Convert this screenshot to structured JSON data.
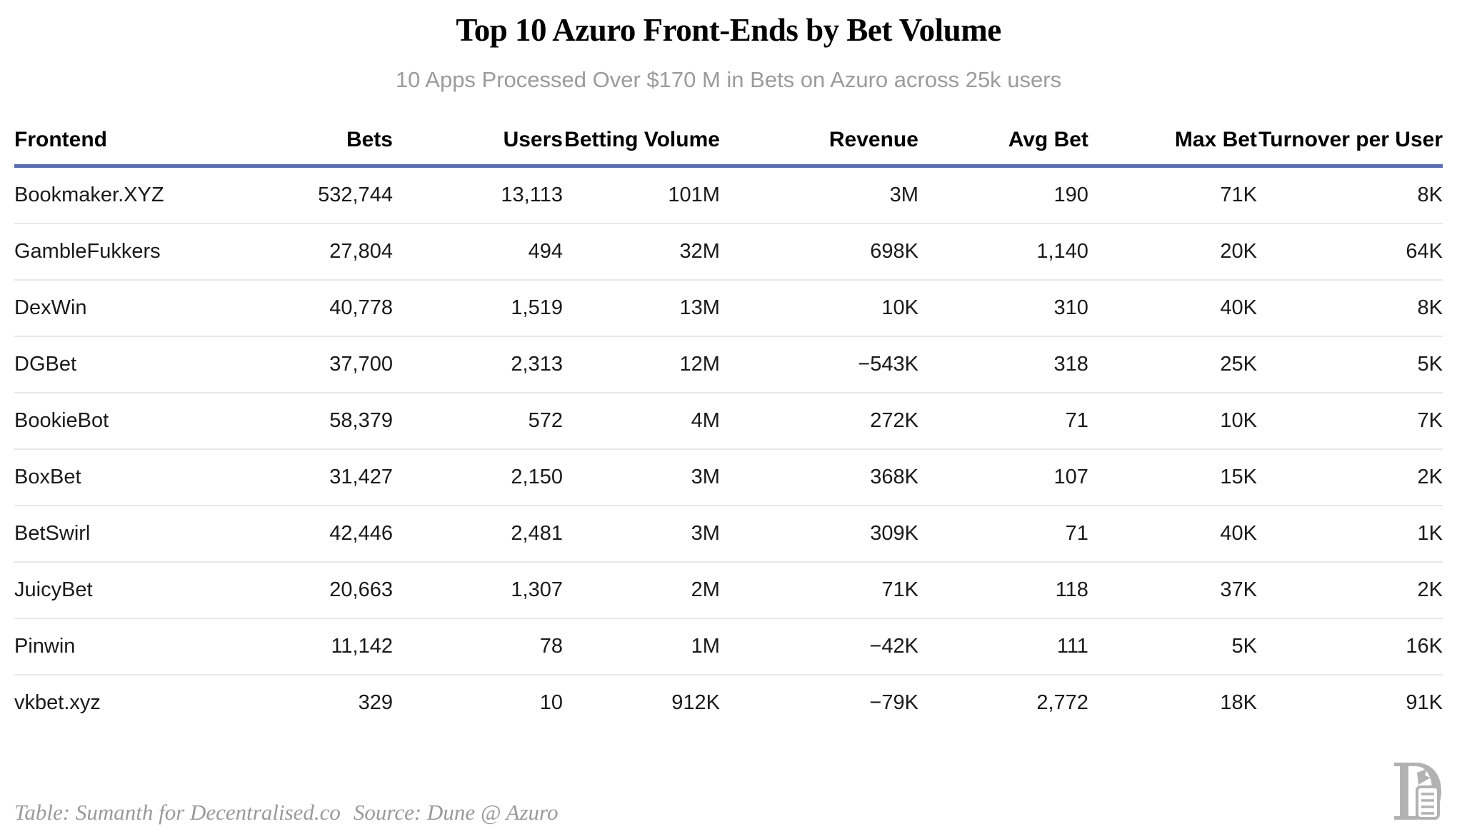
{
  "header": {
    "title": "Top 10 Azuro Front-Ends by Bet Volume",
    "subtitle": "10 Apps Processed Over $170 M in Bets on Azuro across 25k users"
  },
  "chart_data": {
    "type": "table",
    "columns": [
      "Frontend",
      "Bets",
      "Users",
      "Betting Volume",
      "Revenue",
      "Avg Bet",
      "Max Bet",
      "Turnover per User"
    ],
    "rows": [
      [
        "Bookmaker.XYZ",
        "532,744",
        "13,113",
        "101M",
        "3M",
        "190",
        "71K",
        "8K"
      ],
      [
        "GambleFukkers",
        "27,804",
        "494",
        "32M",
        "698K",
        "1,140",
        "20K",
        "64K"
      ],
      [
        "DexWin",
        "40,778",
        "1,519",
        "13M",
        "10K",
        "310",
        "40K",
        "8K"
      ],
      [
        "DGBet",
        "37,700",
        "2,313",
        "12M",
        "−543K",
        "318",
        "25K",
        "5K"
      ],
      [
        "BookieBot",
        "58,379",
        "572",
        "4M",
        "272K",
        "71",
        "10K",
        "7K"
      ],
      [
        "BoxBet",
        "31,427",
        "2,150",
        "3M",
        "368K",
        "107",
        "15K",
        "2K"
      ],
      [
        "BetSwirl",
        "42,446",
        "2,481",
        "3M",
        "309K",
        "71",
        "40K",
        "1K"
      ],
      [
        "JuicyBet",
        "20,663",
        "1,307",
        "2M",
        "71K",
        "118",
        "37K",
        "2K"
      ],
      [
        "Pinwin",
        "11,142",
        "78",
        "1M",
        "−42K",
        "111",
        "5K",
        "16K"
      ],
      [
        "vkbet.xyz",
        "329",
        "10",
        "912K",
        "−79K",
        "2,772",
        "18K",
        "91K"
      ]
    ],
    "title": "Top 10 Azuro Front-Ends by Bet Volume",
    "subtitle": "10 Apps Processed Over $170 M in Bets on Azuro across 25k users",
    "notes": "numeric columns right-aligned, frontend column left-aligned"
  },
  "footer": {
    "credit": "Table: Sumanth for Decentralised.co",
    "source": "Source: Dune @ Azuro"
  },
  "colors": {
    "accent_rule": "#5a6bb0",
    "row_divider": "#e8e8e8",
    "subtitle_gray": "#9b9b9b",
    "footer_gray": "#9a9a9a",
    "logo_gray": "#b2b2b2"
  }
}
